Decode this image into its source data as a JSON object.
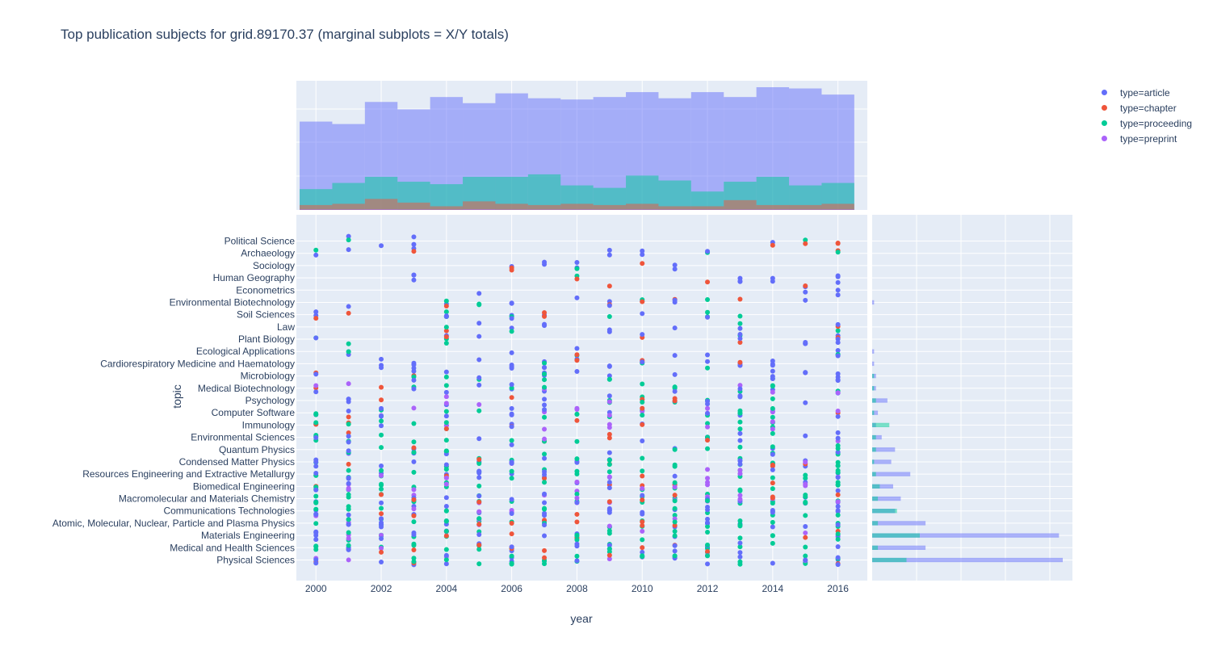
{
  "title": "Top publication subjects for grid.89170.37 (marginal subplots = X/Y totals)",
  "chart_data": {
    "type": "scatter",
    "title": "Top publication subjects for grid.89170.37 (marginal subplots = X/Y totals)",
    "xlabel": "year",
    "ylabel": "topic",
    "xlim": [
      1999.4,
      2016.9
    ],
    "x_ticks": [
      2000,
      2002,
      2004,
      2006,
      2008,
      2010,
      2012,
      2014,
      2016
    ],
    "years": [
      2000,
      2001,
      2002,
      2003,
      2004,
      2005,
      2006,
      2007,
      2008,
      2009,
      2010,
      2011,
      2012,
      2013,
      2014,
      2015,
      2016
    ],
    "categories": [
      "Political Science",
      "Archaeology",
      "Sociology",
      "Human Geography",
      "Econometrics",
      "Environmental Biotechnology",
      "Soil Sciences",
      "Law",
      "Plant Biology",
      "Ecological Applications",
      "Cardiorespiratory Medicine and Haematology",
      "Microbiology",
      "Medical Biotechnology",
      "Psychology",
      "Computer Software",
      "Immunology",
      "Environmental Sciences",
      "Quantum Physics",
      "Condensed Matter Physics",
      "Resources Engineering and Extractive Metallurgy",
      "Biomedical Engineering",
      "Macromolecular and Materials Chemistry",
      "Communications Technologies",
      "Atomic, Molecular, Nuclear, Particle and Plasma Physics",
      "Materials Engineering",
      "Medical and Health Sciences",
      "Physical Sciences"
    ],
    "legend_position": "top-right",
    "series": [
      {
        "name": "type=article",
        "color": "#636efa"
      },
      {
        "name": "type=chapter",
        "color": "#EF553B"
      },
      {
        "name": "type=proceeding",
        "color": "#00cc96"
      },
      {
        "name": "type=preprint",
        "color": "#ab63fa"
      }
    ],
    "marginal_x": {
      "type": "histogram",
      "article": [
        0.72,
        0.7,
        0.88,
        0.82,
        0.92,
        0.87,
        0.95,
        0.91,
        0.9,
        0.92,
        0.96,
        0.91,
        0.96,
        0.92,
        1.0,
        0.99,
        0.94
      ],
      "proceeding": [
        0.17,
        0.22,
        0.27,
        0.23,
        0.21,
        0.27,
        0.27,
        0.29,
        0.2,
        0.18,
        0.28,
        0.24,
        0.15,
        0.23,
        0.27,
        0.2,
        0.22
      ],
      "chapter": [
        0.04,
        0.05,
        0.09,
        0.06,
        0.03,
        0.07,
        0.05,
        0.04,
        0.05,
        0.04,
        0.05,
        0.03,
        0.03,
        0.08,
        0.04,
        0.04,
        0.05
      ],
      "preprint": [
        0.005,
        0.005,
        0.006,
        0.005,
        0.004,
        0.006,
        0.004,
        0.004,
        0.005,
        0.004,
        0.005,
        0.004,
        0.004,
        0.004,
        0.005,
        0.004,
        0.005
      ]
    },
    "marginal_y": {
      "type": "histogram",
      "article_per_category": [
        0.0,
        0.0,
        0.0,
        0.0,
        0.0,
        0.01,
        0.0,
        0.0,
        0.0,
        0.01,
        0.01,
        0.02,
        0.02,
        0.08,
        0.03,
        0.02,
        0.05,
        0.12,
        0.1,
        0.2,
        0.11,
        0.15,
        0.12,
        0.28,
        0.98,
        0.28,
        1.0
      ],
      "proceeding_per_category": [
        0.0,
        0.0,
        0.0,
        0.0,
        0.0,
        0.0,
        0.0,
        0.0,
        0.0,
        0.0,
        0.0,
        0.01,
        0.01,
        0.02,
        0.01,
        0.09,
        0.02,
        0.02,
        0.01,
        0.02,
        0.04,
        0.03,
        0.13,
        0.03,
        0.25,
        0.03,
        0.18
      ]
    }
  },
  "legend": {
    "items": [
      {
        "label": "type=article",
        "color": "#636efa"
      },
      {
        "label": "type=chapter",
        "color": "#EF553B"
      },
      {
        "label": "type=proceeding",
        "color": "#00cc96"
      },
      {
        "label": "type=preprint",
        "color": "#ab63fa"
      }
    ]
  },
  "colors": {
    "plot_bg": "#e5ecf6",
    "grid": "#ffffff",
    "text": "#2a3f5f"
  }
}
